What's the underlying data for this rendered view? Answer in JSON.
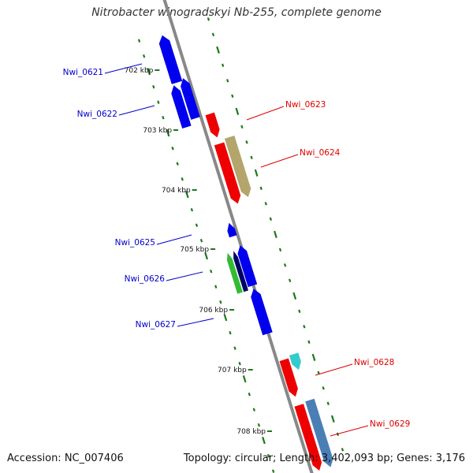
{
  "title": "Nitrobacter winogradskyi Nb-255, complete genome",
  "accession": "Accession: NC_007406",
  "topology_info": "Topology: circular; Length: 3,402,093 bp; Genes: 3,176",
  "colors": {
    "backbone": "#888888",
    "tick": "#1a7a1a",
    "blue": "#0000ee",
    "red": "#ee0000",
    "tan": "#b3a56b",
    "cyan": "#33cccc",
    "steel": "#4a7fb5",
    "green": "#33bb33",
    "navy": "#000066",
    "label_blue": "#0000cc",
    "label_red": "#dd0000"
  },
  "kbp_ticks": [
    "702 kbp",
    "703 kbp",
    "704 kbp",
    "705 kbp",
    "706 kbp",
    "707 kbp",
    "708 kbp"
  ],
  "gene_labels": [
    {
      "name": "Nwi_0621",
      "strand": "minus"
    },
    {
      "name": "Nwi_0622",
      "strand": "minus"
    },
    {
      "name": "Nwi_0623",
      "strand": "plus"
    },
    {
      "name": "Nwi_0624",
      "strand": "plus"
    },
    {
      "name": "Nwi_0625",
      "strand": "minus"
    },
    {
      "name": "Nwi_0626",
      "strand": "minus"
    },
    {
      "name": "Nwi_0627",
      "strand": "minus"
    },
    {
      "name": "Nwi_0628",
      "strand": "plus"
    },
    {
      "name": "Nwi_0629",
      "strand": "plus"
    }
  ]
}
